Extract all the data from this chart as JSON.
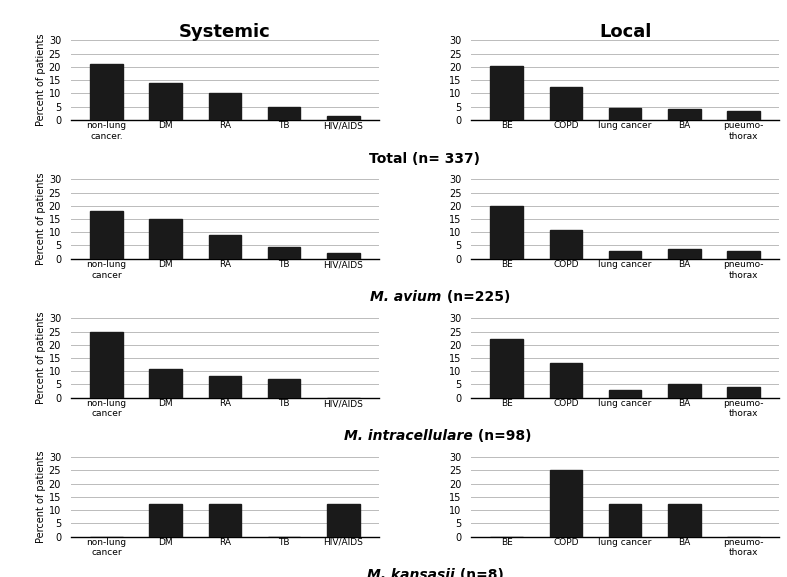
{
  "rows": [
    {
      "label_italic": "",
      "label_bold": "Total (n= 337)",
      "systemic": [
        21,
        14,
        10,
        5,
        1.5
      ],
      "local": [
        20.5,
        12.5,
        4.5,
        4,
        3.5
      ],
      "systemic_labels": [
        "non-lung\ncancer.",
        "DM",
        "RA",
        "TB",
        "HIV/AIDS"
      ],
      "local_labels": [
        "BE",
        "COPD",
        "lung cancer",
        "BA",
        "pueumо-\nthorax"
      ]
    },
    {
      "label_italic": "M. avium",
      "label_bold": " (n=225)",
      "systemic": [
        18,
        15,
        9,
        4.5,
        2
      ],
      "local": [
        20,
        11,
        3,
        3.5,
        3
      ],
      "systemic_labels": [
        "non-lung\ncancer",
        "DM",
        "RA",
        "TB",
        "HIV/AIDS"
      ],
      "local_labels": [
        "BE",
        "COPD",
        "lung cancer",
        "BA",
        "pneumo-\nthorax"
      ]
    },
    {
      "label_italic": "M. intracellulare",
      "label_bold": " (n=98)",
      "systemic": [
        25,
        11,
        8,
        7,
        0
      ],
      "local": [
        22,
        13,
        3,
        5,
        4
      ],
      "systemic_labels": [
        "non-lung\ncancer",
        "DM",
        "RA",
        "TB",
        "HIV/AIDS"
      ],
      "local_labels": [
        "BE",
        "COPD",
        "lung cancer",
        "BA",
        "pneumo-\nthorax"
      ]
    },
    {
      "label_italic": "M. kansasii",
      "label_bold": " (n=8)",
      "systemic": [
        0,
        12.5,
        12.5,
        0,
        12.5
      ],
      "local": [
        0,
        25,
        12.5,
        12.5,
        0
      ],
      "systemic_labels": [
        "non-lung\ncancer",
        "DM",
        "RA",
        "TB",
        "HIV/AIDS"
      ],
      "local_labels": [
        "BE",
        "COPD",
        "lung cancer",
        "BA",
        "pneumo-\nthorax"
      ]
    }
  ],
  "col_titles": [
    "Systemic",
    "Local"
  ],
  "ylabel": "Percent of patients",
  "ylim": [
    0,
    30
  ],
  "yticks": [
    0,
    5,
    10,
    15,
    20,
    25,
    30
  ],
  "bar_color": "#1a1a1a",
  "bg_color": "#ffffff",
  "grid_color": "#bbbbbb"
}
